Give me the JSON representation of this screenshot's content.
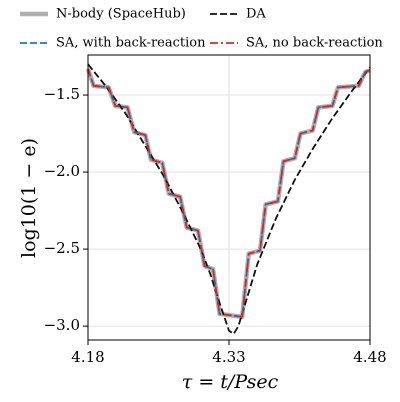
{
  "chart_data": {
    "type": "line",
    "xlabel": "τ = t/Psec",
    "ylabel": "log10(1 − e)",
    "xlim": [
      4.18,
      4.48
    ],
    "ylim": [
      -3.09,
      -1.24
    ],
    "xticks": [
      4.18,
      4.33,
      4.48
    ],
    "yticks": [
      {
        "value": -1.5,
        "label": "−1.5"
      },
      {
        "value": -2.0,
        "label": "−2.0"
      },
      {
        "value": -2.5,
        "label": "−2.5"
      },
      {
        "value": -3.0,
        "label": "−3.0"
      }
    ],
    "grid": true,
    "legend": "top",
    "series": [
      {
        "name": "N-body (SpaceHub)",
        "color": "#b0b0b0",
        "linestyle": "solid",
        "linewidth": 4.5,
        "x": [
          4.18,
          4.186,
          4.202,
          4.209,
          4.222,
          4.229,
          4.241,
          4.247,
          4.259,
          4.266,
          4.278,
          4.285,
          4.297,
          4.304,
          4.313,
          4.32,
          4.344,
          4.351,
          4.363,
          4.369,
          4.382,
          4.388,
          4.4,
          4.406,
          4.419,
          4.425,
          4.44,
          4.446,
          4.468,
          4.475,
          4.48
        ],
        "values": [
          -1.33,
          -1.44,
          -1.45,
          -1.57,
          -1.58,
          -1.74,
          -1.76,
          -1.92,
          -1.94,
          -2.14,
          -2.16,
          -2.36,
          -2.38,
          -2.61,
          -2.63,
          -2.92,
          -2.94,
          -2.53,
          -2.51,
          -2.21,
          -2.19,
          -1.93,
          -1.91,
          -1.75,
          -1.73,
          -1.58,
          -1.57,
          -1.45,
          -1.44,
          -1.35,
          -1.34
        ]
      },
      {
        "name": "DA",
        "color": "#111111",
        "linestyle": "dashed",
        "linewidth": 1.8,
        "x": [
          4.18,
          4.2,
          4.22,
          4.24,
          4.26,
          4.28,
          4.3,
          4.31,
          4.32,
          4.33,
          4.335,
          4.34,
          4.35,
          4.36,
          4.38,
          4.4,
          4.42,
          4.44,
          4.46,
          4.48
        ],
        "values": [
          -1.3,
          -1.45,
          -1.62,
          -1.82,
          -2.02,
          -2.25,
          -2.5,
          -2.66,
          -2.85,
          -3.03,
          -3.05,
          -3.0,
          -2.8,
          -2.6,
          -2.3,
          -2.05,
          -1.84,
          -1.65,
          -1.48,
          -1.32
        ]
      },
      {
        "name": "SA, with back-reaction",
        "color": "#1f77b4",
        "linestyle": "dashed",
        "linewidth": 1.8,
        "x": [
          4.18,
          4.186,
          4.202,
          4.209,
          4.222,
          4.229,
          4.241,
          4.247,
          4.259,
          4.266,
          4.278,
          4.285,
          4.297,
          4.304,
          4.313,
          4.32,
          4.344,
          4.351,
          4.363,
          4.369,
          4.382,
          4.388,
          4.4,
          4.406,
          4.419,
          4.425,
          4.44,
          4.446,
          4.468,
          4.475,
          4.48
        ],
        "values": [
          -1.33,
          -1.44,
          -1.45,
          -1.57,
          -1.58,
          -1.74,
          -1.76,
          -1.92,
          -1.94,
          -2.14,
          -2.16,
          -2.36,
          -2.38,
          -2.61,
          -2.63,
          -2.92,
          -2.94,
          -2.53,
          -2.51,
          -2.21,
          -2.19,
          -1.93,
          -1.91,
          -1.75,
          -1.73,
          -1.58,
          -1.57,
          -1.45,
          -1.44,
          -1.35,
          -1.34
        ]
      },
      {
        "name": "SA, no back-reaction",
        "color": "#d62728",
        "linestyle": "dashdot",
        "linewidth": 1.8,
        "x": [
          4.18,
          4.186,
          4.202,
          4.209,
          4.222,
          4.229,
          4.241,
          4.247,
          4.259,
          4.266,
          4.278,
          4.285,
          4.297,
          4.304,
          4.313,
          4.32,
          4.344,
          4.351,
          4.363,
          4.369,
          4.382,
          4.388,
          4.4,
          4.406,
          4.419,
          4.425,
          4.44,
          4.446,
          4.468,
          4.475,
          4.48
        ],
        "values": [
          -1.33,
          -1.44,
          -1.45,
          -1.57,
          -1.58,
          -1.74,
          -1.76,
          -1.92,
          -1.94,
          -2.14,
          -2.16,
          -2.36,
          -2.38,
          -2.61,
          -2.63,
          -2.92,
          -2.94,
          -2.53,
          -2.51,
          -2.21,
          -2.19,
          -1.93,
          -1.91,
          -1.75,
          -1.73,
          -1.58,
          -1.57,
          -1.45,
          -1.44,
          -1.35,
          -1.34
        ]
      }
    ]
  }
}
